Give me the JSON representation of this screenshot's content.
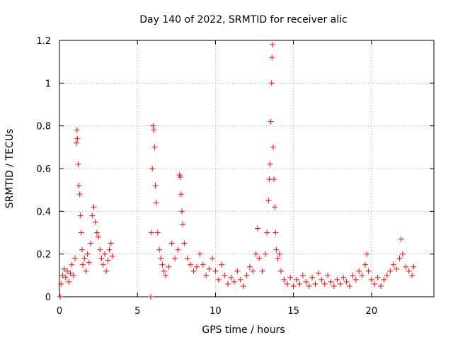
{
  "chart_data": {
    "type": "scatter",
    "title": "Day 140 of 2022, SRMTID for receiver alic",
    "xlabel": "GPS time / hours",
    "ylabel": "SRMTID / TECUs",
    "xlim": [
      0,
      24
    ],
    "ylim": [
      0,
      1.2
    ],
    "xticks": [
      0,
      5,
      10,
      15,
      20
    ],
    "xtick_labels": [
      "0",
      "5",
      "10",
      "15",
      "20"
    ],
    "yticks": [
      0,
      0.2,
      0.4,
      0.6,
      0.8,
      1.0,
      1.2
    ],
    "ytick_labels": [
      "0",
      "0.2",
      "0.4",
      "0.6",
      "0.8",
      "1",
      "1.2"
    ],
    "grid": true,
    "marker": "+",
    "marker_color": "#ff0000",
    "series": [
      {
        "name": "SRMTID",
        "points": [
          [
            0.05,
            0.0
          ],
          [
            0.1,
            0.06
          ],
          [
            0.2,
            0.1
          ],
          [
            0.3,
            0.13
          ],
          [
            0.4,
            0.09
          ],
          [
            0.5,
            0.12
          ],
          [
            0.6,
            0.07
          ],
          [
            0.7,
            0.11
          ],
          [
            0.8,
            0.15
          ],
          [
            0.9,
            0.1
          ],
          [
            1.0,
            0.18
          ],
          [
            1.1,
            0.72
          ],
          [
            1.12,
            0.78
          ],
          [
            1.15,
            0.74
          ],
          [
            1.2,
            0.62
          ],
          [
            1.25,
            0.52
          ],
          [
            1.3,
            0.48
          ],
          [
            1.35,
            0.38
          ],
          [
            1.4,
            0.3
          ],
          [
            1.45,
            0.22
          ],
          [
            1.5,
            0.15
          ],
          [
            1.6,
            0.18
          ],
          [
            1.7,
            0.12
          ],
          [
            1.8,
            0.2
          ],
          [
            1.9,
            0.16
          ],
          [
            2.0,
            0.25
          ],
          [
            2.1,
            0.38
          ],
          [
            2.2,
            0.42
          ],
          [
            2.3,
            0.35
          ],
          [
            2.4,
            0.3
          ],
          [
            2.5,
            0.28
          ],
          [
            2.6,
            0.22
          ],
          [
            2.7,
            0.18
          ],
          [
            2.8,
            0.15
          ],
          [
            2.9,
            0.2
          ],
          [
            3.0,
            0.12
          ],
          [
            3.1,
            0.17
          ],
          [
            3.2,
            0.22
          ],
          [
            3.3,
            0.25
          ],
          [
            3.4,
            0.19
          ],
          [
            5.85,
            0.0
          ],
          [
            5.9,
            0.3
          ],
          [
            5.95,
            0.6
          ],
          [
            6.0,
            0.8
          ],
          [
            6.05,
            0.78
          ],
          [
            6.1,
            0.7
          ],
          [
            6.15,
            0.52
          ],
          [
            6.2,
            0.44
          ],
          [
            6.3,
            0.3
          ],
          [
            6.4,
            0.22
          ],
          [
            6.5,
            0.18
          ],
          [
            6.6,
            0.15
          ],
          [
            6.7,
            0.12
          ],
          [
            6.8,
            0.1
          ],
          [
            7.0,
            0.14
          ],
          [
            7.2,
            0.25
          ],
          [
            7.4,
            0.18
          ],
          [
            7.6,
            0.22
          ],
          [
            7.7,
            0.57
          ],
          [
            7.75,
            0.56
          ],
          [
            7.8,
            0.48
          ],
          [
            7.85,
            0.4
          ],
          [
            7.9,
            0.34
          ],
          [
            8.0,
            0.25
          ],
          [
            8.2,
            0.18
          ],
          [
            8.4,
            0.15
          ],
          [
            8.6,
            0.12
          ],
          [
            8.8,
            0.14
          ],
          [
            9.0,
            0.2
          ],
          [
            9.2,
            0.15
          ],
          [
            9.4,
            0.1
          ],
          [
            9.6,
            0.13
          ],
          [
            9.8,
            0.18
          ],
          [
            10.0,
            0.12
          ],
          [
            10.2,
            0.08
          ],
          [
            10.4,
            0.15
          ],
          [
            10.6,
            0.1
          ],
          [
            10.8,
            0.06
          ],
          [
            11.0,
            0.09
          ],
          [
            11.2,
            0.07
          ],
          [
            11.4,
            0.12
          ],
          [
            11.6,
            0.08
          ],
          [
            11.8,
            0.05
          ],
          [
            12.0,
            0.1
          ],
          [
            12.2,
            0.14
          ],
          [
            12.4,
            0.12
          ],
          [
            12.6,
            0.2
          ],
          [
            12.7,
            0.32
          ],
          [
            12.8,
            0.18
          ],
          [
            13.0,
            0.12
          ],
          [
            13.2,
            0.2
          ],
          [
            13.3,
            0.3
          ],
          [
            13.4,
            0.45
          ],
          [
            13.45,
            0.55
          ],
          [
            13.5,
            0.62
          ],
          [
            13.55,
            0.82
          ],
          [
            13.6,
            1.0
          ],
          [
            13.62,
            1.12
          ],
          [
            13.65,
            1.18
          ],
          [
            13.7,
            0.7
          ],
          [
            13.75,
            0.55
          ],
          [
            13.8,
            0.42
          ],
          [
            13.85,
            0.3
          ],
          [
            13.9,
            0.22
          ],
          [
            14.0,
            0.18
          ],
          [
            14.1,
            0.2
          ],
          [
            14.2,
            0.12
          ],
          [
            14.4,
            0.08
          ],
          [
            14.6,
            0.06
          ],
          [
            14.8,
            0.09
          ],
          [
            15.0,
            0.05
          ],
          [
            15.2,
            0.08
          ],
          [
            15.4,
            0.06
          ],
          [
            15.6,
            0.1
          ],
          [
            15.8,
            0.07
          ],
          [
            16.0,
            0.05
          ],
          [
            16.2,
            0.09
          ],
          [
            16.4,
            0.06
          ],
          [
            16.6,
            0.11
          ],
          [
            16.8,
            0.08
          ],
          [
            17.0,
            0.06
          ],
          [
            17.2,
            0.1
          ],
          [
            17.4,
            0.07
          ],
          [
            17.6,
            0.05
          ],
          [
            17.8,
            0.08
          ],
          [
            18.0,
            0.06
          ],
          [
            18.2,
            0.09
          ],
          [
            18.4,
            0.07
          ],
          [
            18.6,
            0.05
          ],
          [
            18.8,
            0.1
          ],
          [
            19.0,
            0.08
          ],
          [
            19.2,
            0.12
          ],
          [
            19.4,
            0.1
          ],
          [
            19.6,
            0.15
          ],
          [
            19.7,
            0.2
          ],
          [
            19.8,
            0.12
          ],
          [
            20.0,
            0.08
          ],
          [
            20.2,
            0.06
          ],
          [
            20.4,
            0.09
          ],
          [
            20.6,
            0.05
          ],
          [
            20.8,
            0.08
          ],
          [
            21.0,
            0.1
          ],
          [
            21.2,
            0.12
          ],
          [
            21.4,
            0.15
          ],
          [
            21.6,
            0.13
          ],
          [
            21.8,
            0.18
          ],
          [
            21.9,
            0.27
          ],
          [
            22.0,
            0.2
          ],
          [
            22.2,
            0.14
          ],
          [
            22.4,
            0.12
          ],
          [
            22.6,
            0.1
          ],
          [
            22.7,
            0.14
          ]
        ]
      }
    ]
  }
}
